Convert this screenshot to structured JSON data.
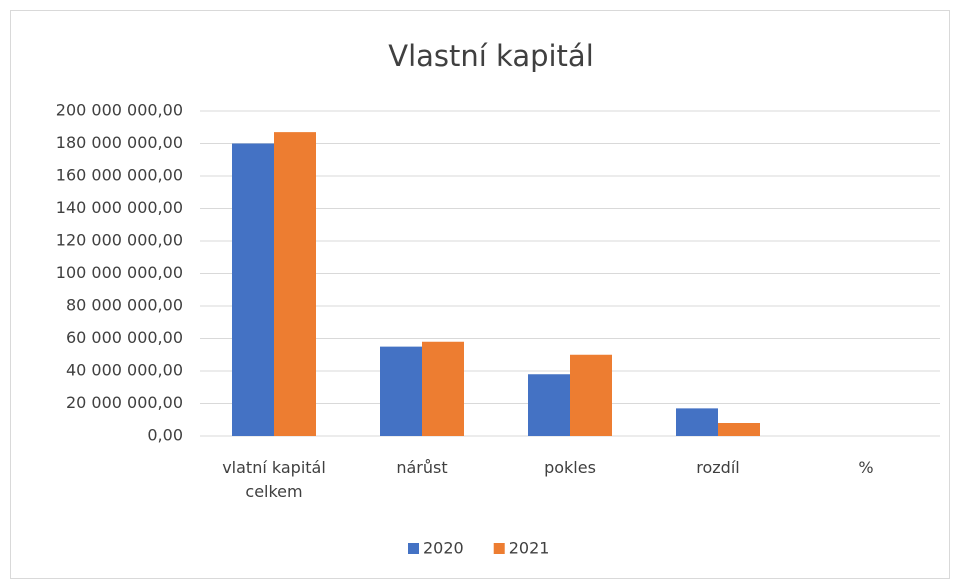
{
  "chart_data": {
    "type": "bar",
    "title": "Vlastní kapitál",
    "categories": [
      "vlatní kapitál celkem",
      "nárůst",
      "pokles",
      "rozdíl",
      "%"
    ],
    "series": [
      {
        "name": "2020",
        "color": "#4472c4",
        "values": [
          180000000,
          55000000,
          38000000,
          17000000,
          0
        ]
      },
      {
        "name": "2021",
        "color": "#ed7d31",
        "values": [
          187000000,
          58000000,
          50000000,
          8000000,
          0
        ]
      }
    ],
    "ylim": [
      0,
      200000000
    ],
    "yticks": [
      {
        "value": 0,
        "label": "0,00"
      },
      {
        "value": 20000000,
        "label": "20 000 000,00"
      },
      {
        "value": 40000000,
        "label": "40 000 000,00"
      },
      {
        "value": 60000000,
        "label": "60 000 000,00"
      },
      {
        "value": 80000000,
        "label": "80 000 000,00"
      },
      {
        "value": 100000000,
        "label": "100 000 000,00"
      },
      {
        "value": 120000000,
        "label": "120 000 000,00"
      },
      {
        "value": 140000000,
        "label": "140 000 000,00"
      },
      {
        "value": 160000000,
        "label": "160 000 000,00"
      },
      {
        "value": 180000000,
        "label": "180 000 000,00"
      },
      {
        "value": 200000000,
        "label": "200 000 000,00"
      }
    ],
    "grid": true,
    "legend": "bottom"
  }
}
